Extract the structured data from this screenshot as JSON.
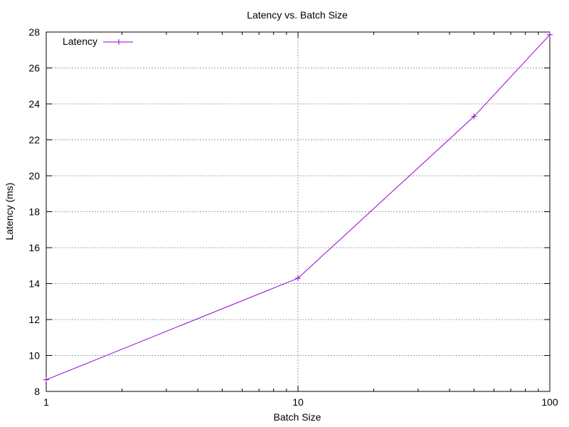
{
  "chart_data": {
    "type": "line",
    "title": "Latency vs. Batch Size",
    "xlabel": "Batch Size",
    "ylabel": "Latency (ms)",
    "x_scale": "log",
    "xlim": [
      1,
      100
    ],
    "ylim": [
      8,
      28
    ],
    "x_ticks": [
      1,
      10,
      100
    ],
    "x_tick_labels": [
      "1",
      "10",
      "100"
    ],
    "y_ticks": [
      8,
      10,
      12,
      14,
      16,
      18,
      20,
      22,
      24,
      26,
      28
    ],
    "y_tick_labels": [
      "8",
      "10",
      "12",
      "14",
      "16",
      "18",
      "20",
      "22",
      "24",
      "26",
      "28"
    ],
    "grid": true,
    "legend_position": "top-left",
    "series": [
      {
        "name": "Latency",
        "color": "#9400d3",
        "marker": "plus",
        "x": [
          1,
          10,
          50,
          100
        ],
        "y": [
          8.65,
          14.3,
          23.3,
          27.85
        ]
      }
    ]
  }
}
